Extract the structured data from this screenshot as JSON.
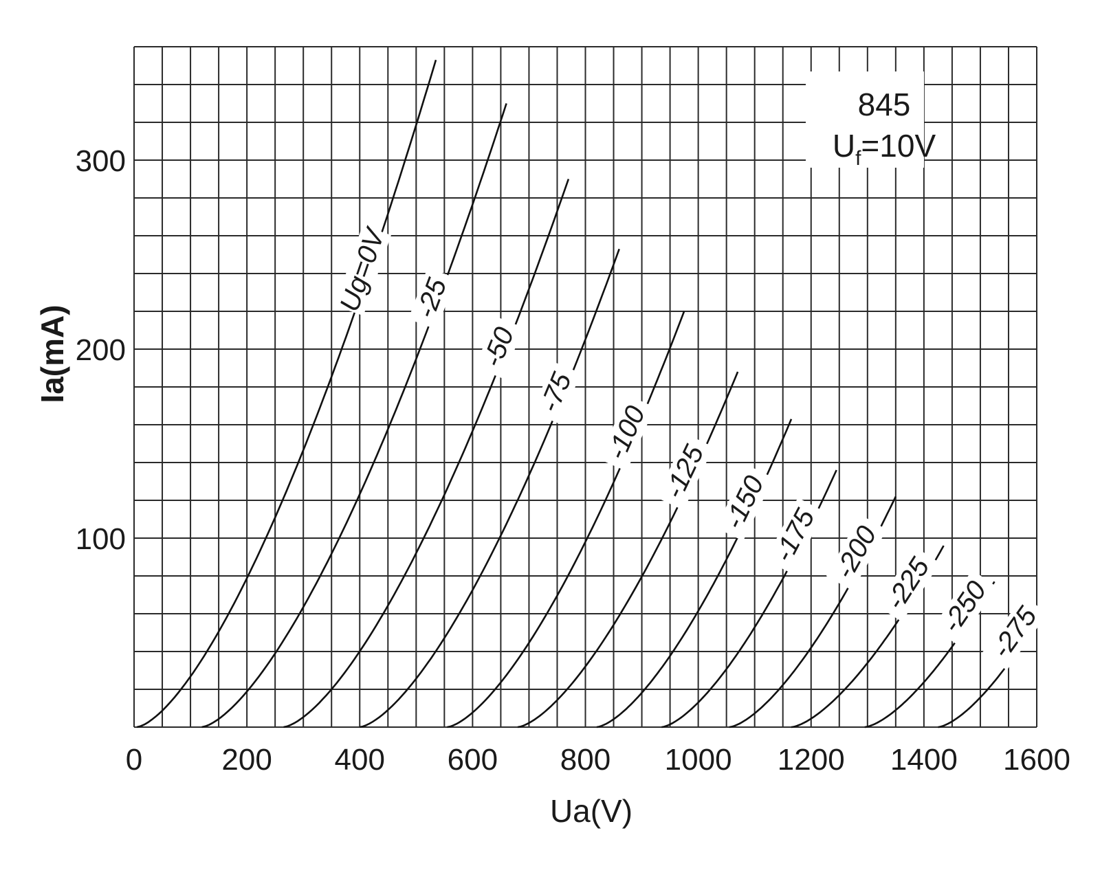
{
  "chart_data": {
    "type": "line",
    "title": "",
    "annotation": {
      "tube": "845",
      "filament_main": "U",
      "filament_sub": "f",
      "filament_value": "=10V"
    },
    "xlabel": "Ua(V)",
    "ylabel": "Ia(mA)",
    "xlim": [
      0,
      1600
    ],
    "ylim": [
      0,
      360
    ],
    "x_ticks": [
      {
        "value": 0,
        "label": "0"
      },
      {
        "value": 200,
        "label": "200"
      },
      {
        "value": 400,
        "label": "400"
      },
      {
        "value": 600,
        "label": "600"
      },
      {
        "value": 800,
        "label": "800"
      },
      {
        "value": 1000,
        "label": "1000"
      },
      {
        "value": 1200,
        "label": "1200"
      },
      {
        "value": 1400,
        "label": "1400"
      },
      {
        "value": 1600,
        "label": "1600"
      }
    ],
    "y_ticks": [
      {
        "value": 100,
        "label": "100"
      },
      {
        "value": 200,
        "label": "200"
      },
      {
        "value": 300,
        "label": "300"
      }
    ],
    "grid": true,
    "grid_step_x": 50,
    "grid_step_y": 20,
    "series": [
      {
        "name": "Ug=0V",
        "start": 5,
        "end": [
          535,
          353
        ],
        "shape": 0.75
      },
      {
        "name": "-25",
        "start": 120,
        "end": [
          660,
          330
        ],
        "shape": 0.75
      },
      {
        "name": "-50",
        "start": 265,
        "end": [
          770,
          290
        ],
        "shape": 0.75
      },
      {
        "name": "-75",
        "start": 400,
        "end": [
          860,
          253
        ],
        "shape": 0.75
      },
      {
        "name": "-100",
        "start": 555,
        "end": [
          975,
          220
        ],
        "shape": 0.75
      },
      {
        "name": "-125",
        "start": 680,
        "end": [
          1070,
          188
        ],
        "shape": 0.75
      },
      {
        "name": "-150",
        "start": 820,
        "end": [
          1165,
          163
        ],
        "shape": 0.75
      },
      {
        "name": "-175",
        "start": 935,
        "end": [
          1245,
          136
        ],
        "shape": 0.75
      },
      {
        "name": "-200",
        "start": 1055,
        "end": [
          1350,
          122
        ],
        "shape": 0.75
      },
      {
        "name": "-225",
        "start": 1165,
        "end": [
          1435,
          96
        ],
        "shape": 0.75
      },
      {
        "name": "-250",
        "start": 1295,
        "end": [
          1525,
          77
        ],
        "shape": 0.75
      },
      {
        "name": "-275",
        "start": 1425,
        "end": [
          1600,
          56
        ],
        "shape": 0.75
      }
    ]
  }
}
